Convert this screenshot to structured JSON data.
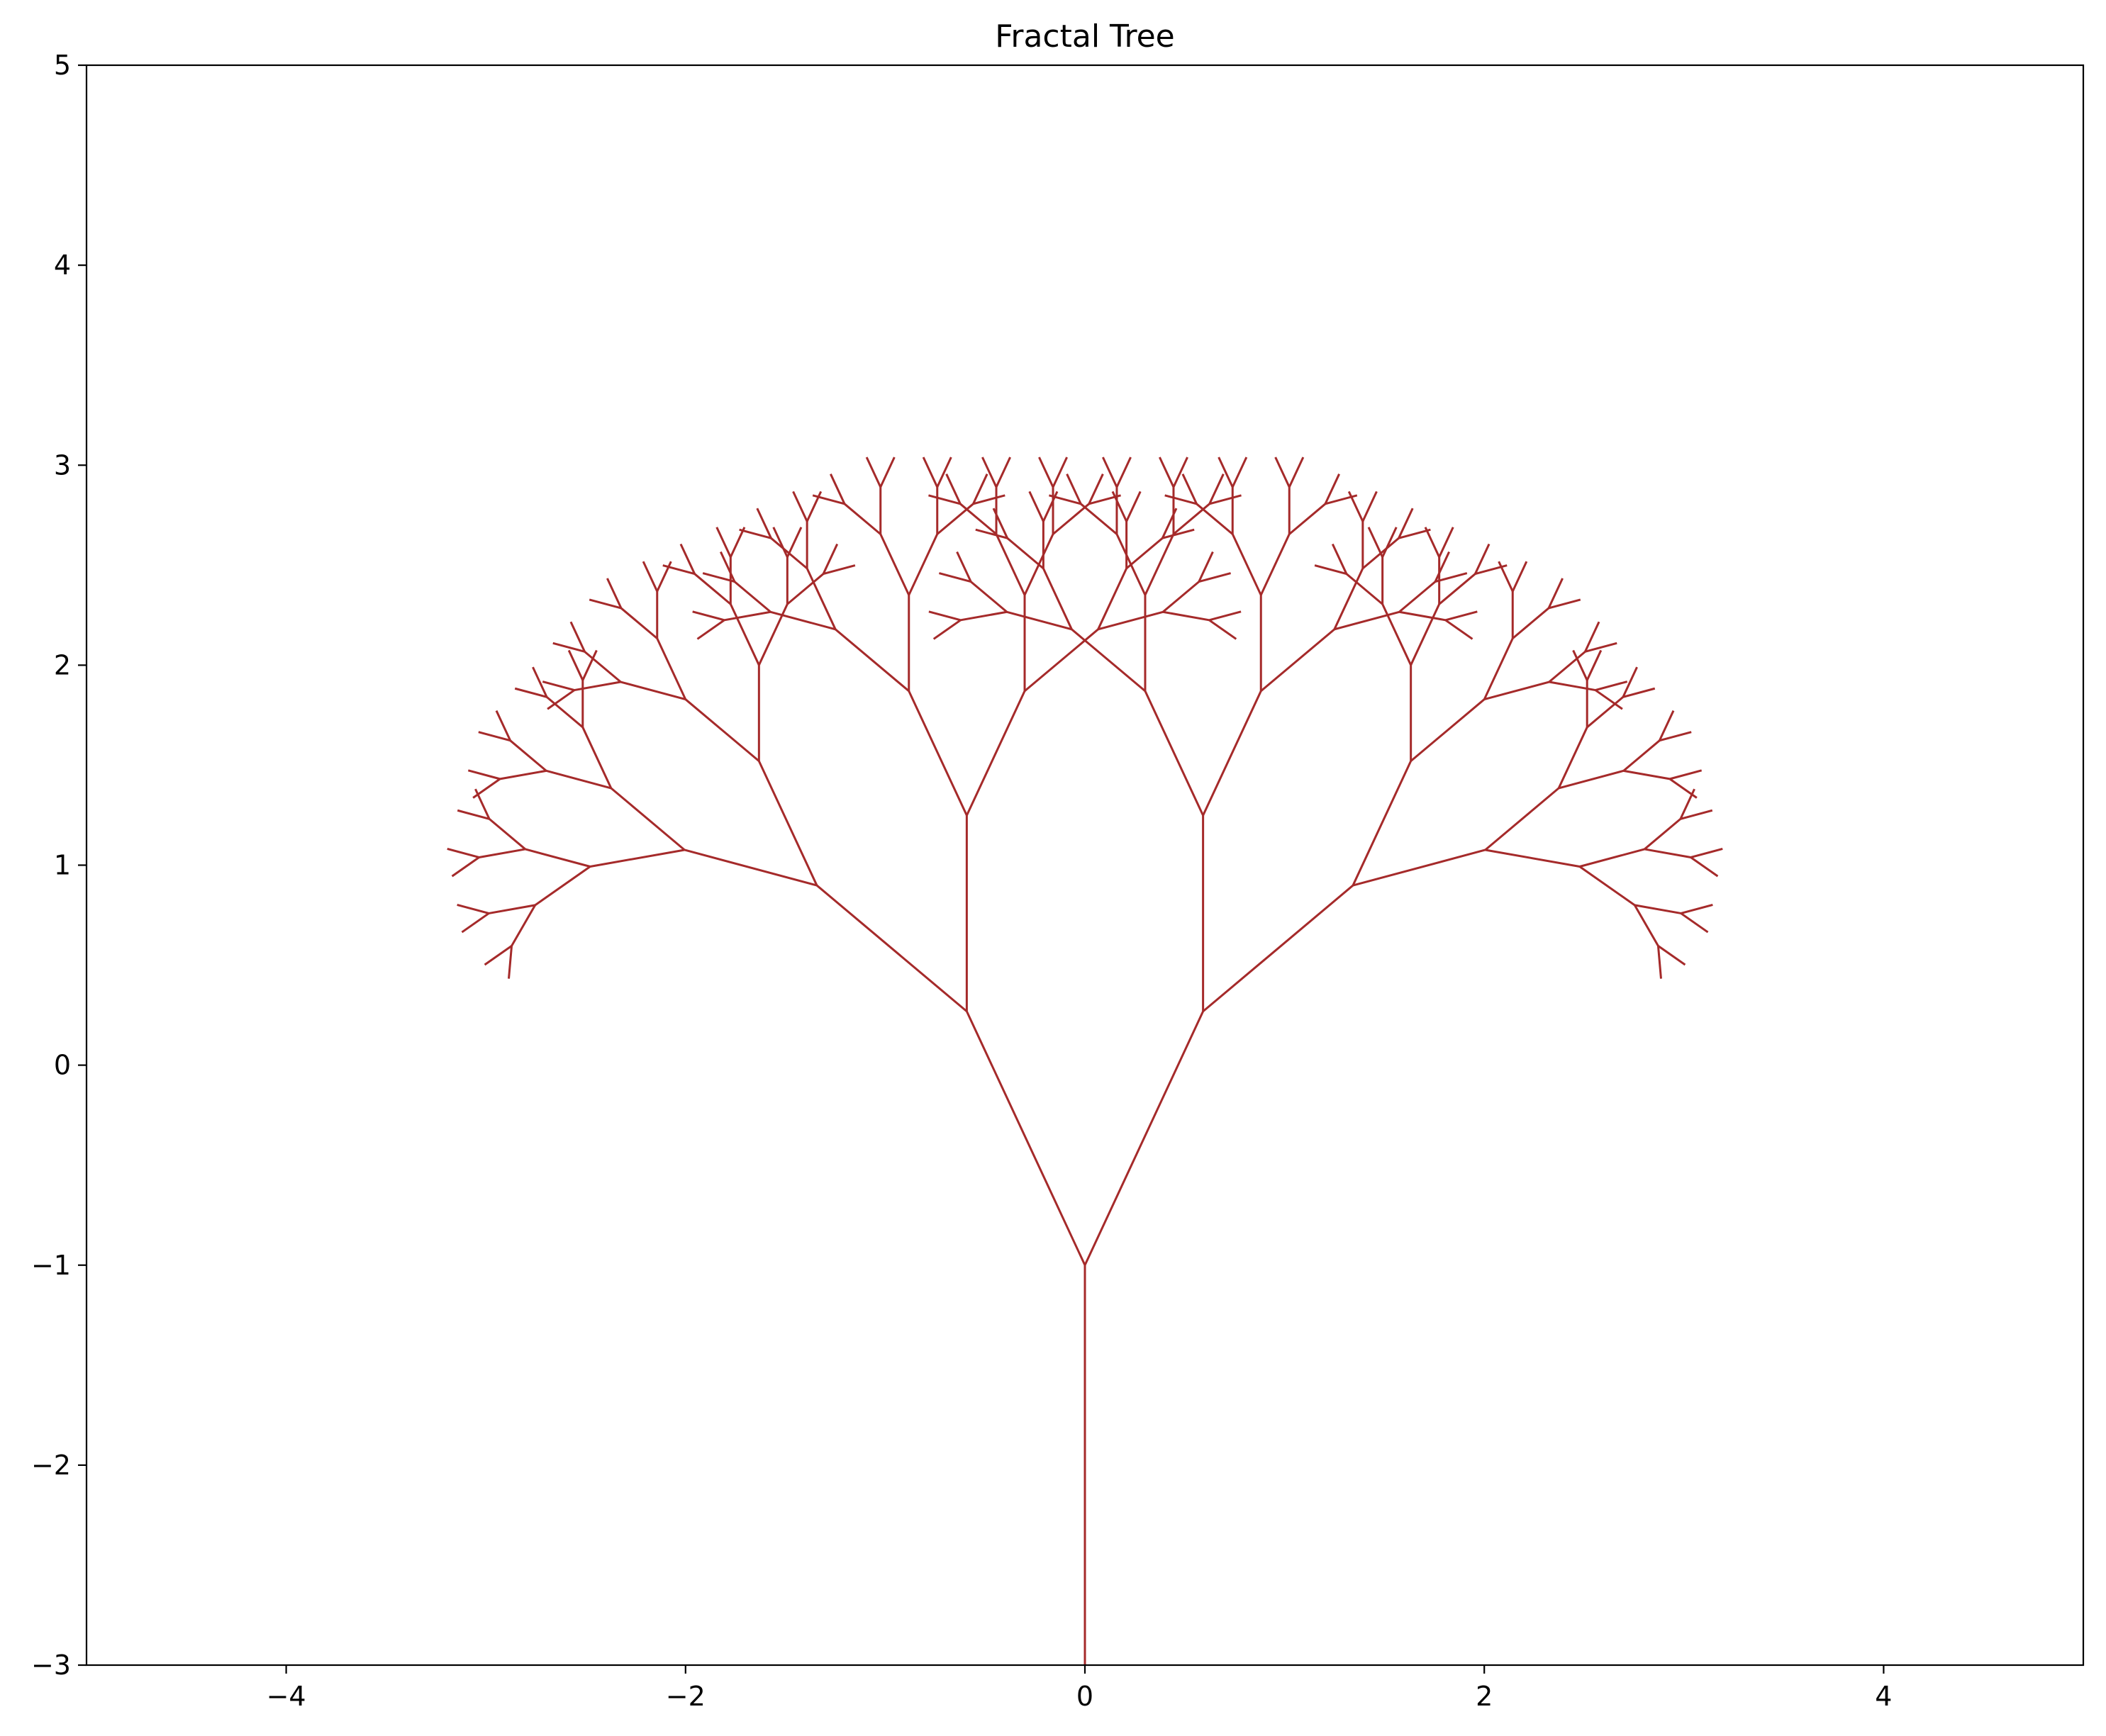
{
  "chart_data": {
    "type": "line",
    "title": "Fractal Tree",
    "xlabel": "",
    "ylabel": "",
    "xlim": [
      -5,
      5
    ],
    "ylim": [
      -3,
      5
    ],
    "xticks": [
      -4,
      -2,
      0,
      2,
      4
    ],
    "yticks": [
      -3,
      -2,
      -1,
      0,
      1,
      2,
      3,
      4,
      5
    ],
    "grid": false,
    "line_color": "#a52a2a",
    "fractal": {
      "trunk_base": [
        0,
        -3
      ],
      "trunk_top": [
        0,
        -1
      ],
      "trunk_length": 2,
      "first_branch_length": 1.4,
      "length_ratio": 0.7,
      "branch_angle_deg": 25,
      "depth": 7
    }
  }
}
